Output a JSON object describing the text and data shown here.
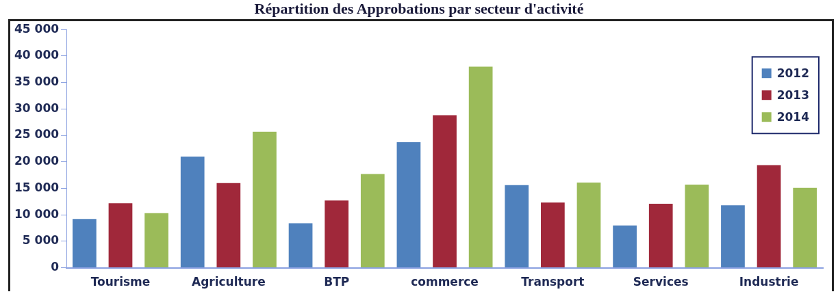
{
  "chart_data": {
    "type": "bar",
    "title": "Répartition des Approbations par secteur d'activité",
    "categories": [
      "Tourisme",
      "Agriculture",
      "BTP",
      "commerce",
      "Transport",
      "Services",
      "Industrie"
    ],
    "series": [
      {
        "name": "2012",
        "color": "#4f81bd",
        "values": [
          9200,
          21000,
          8400,
          23700,
          15600,
          8000,
          11800
        ]
      },
      {
        "name": "2013",
        "color": "#a0283a",
        "values": [
          12200,
          16000,
          12700,
          28800,
          12300,
          12100,
          19400
        ]
      },
      {
        "name": "2014",
        "color": "#9bbb59",
        "values": [
          10300,
          25700,
          17700,
          38000,
          16100,
          15700,
          15100
        ]
      }
    ],
    "ylim": [
      0,
      45000
    ],
    "yticks": [
      {
        "value": 0,
        "label": "0"
      },
      {
        "value": 5000,
        "label": "5 000"
      },
      {
        "value": 10000,
        "label": "10 000"
      },
      {
        "value": 15000,
        "label": "15 000"
      },
      {
        "value": 20000,
        "label": "20 000"
      },
      {
        "value": 25000,
        "label": "25 000"
      },
      {
        "value": 30000,
        "label": "30 000"
      },
      {
        "value": 35000,
        "label": "35 000"
      },
      {
        "value": 40000,
        "label": "40 000"
      },
      {
        "value": 45000,
        "label": "45 000"
      }
    ],
    "grid": false,
    "legend": "top right"
  }
}
